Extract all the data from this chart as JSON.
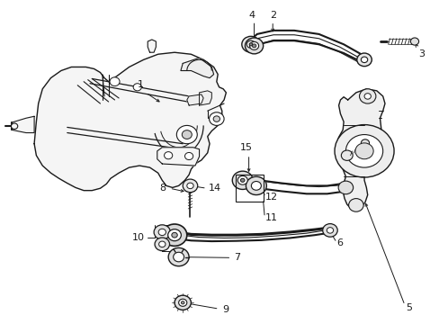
{
  "bg_color": "#ffffff",
  "line_color": "#1a1a1a",
  "fig_width": 4.89,
  "fig_height": 3.6,
  "dpi": 100,
  "label_positions": {
    "1": [
      0.3,
      0.685,
      0.27,
      0.66
    ],
    "2": [
      0.595,
      0.93,
      0.595,
      0.895
    ],
    "3": [
      0.945,
      0.87,
      0.945,
      0.855
    ],
    "4": [
      0.555,
      0.93,
      0.555,
      0.88
    ],
    "5": [
      0.92,
      0.13,
      0.9,
      0.165
    ],
    "6": [
      0.75,
      0.31,
      0.72,
      0.318
    ],
    "7": [
      0.59,
      0.275,
      0.545,
      0.278
    ],
    "8": [
      0.345,
      0.47,
      0.375,
      0.472
    ],
    "9": [
      0.505,
      0.128,
      0.48,
      0.14
    ],
    "10": [
      0.29,
      0.335,
      0.33,
      0.345
    ],
    "11": [
      0.605,
      0.375,
      0.59,
      0.395
    ],
    "12": [
      0.605,
      0.435,
      0.575,
      0.455
    ],
    "13": [
      0.785,
      0.575,
      0.775,
      0.56
    ],
    "14": [
      0.455,
      0.468,
      0.45,
      0.455
    ],
    "15": [
      0.555,
      0.6,
      0.555,
      0.578
    ]
  }
}
